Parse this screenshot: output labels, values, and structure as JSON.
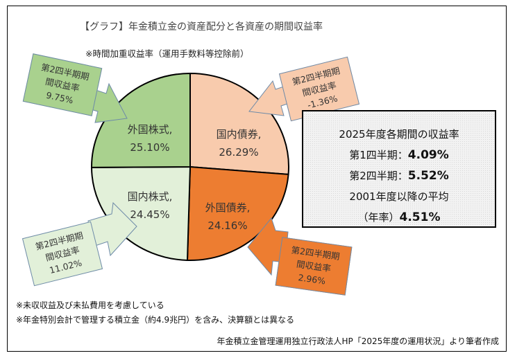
{
  "chart_data": {
    "type": "pie",
    "title": "【グラフ】年金積立金の資産配分と各資産の期間収益率",
    "subtitle": "※時間加重収益率（運用手数料等控除前）",
    "slices": [
      {
        "name": "国内債券",
        "label": "国内債券,",
        "value": 26.29,
        "value_label": "26.29%",
        "color": "#f8cbad",
        "q2_return": "-1.36%"
      },
      {
        "name": "外国債券",
        "label": "外国債券,",
        "value": 24.16,
        "value_label": "24.16%",
        "color": "#ed7d31",
        "q2_return": "2.96%"
      },
      {
        "name": "国内株式",
        "label": "国内株式,",
        "value": 24.45,
        "value_label": "24.45%",
        "color": "#e2f0d9",
        "q2_return": "11.02%"
      },
      {
        "name": "外国株式",
        "label": "外国株式,",
        "value": 25.1,
        "value_label": "25.10%",
        "color": "#a9d18e",
        "q2_return": "9.75%"
      }
    ],
    "callout_line1": "第2四半期期",
    "callout_line2": "間収益率"
  },
  "summary": {
    "heading": "2025年度各期間の収益率",
    "q1_label": "第1四半期：",
    "q1_value": "4.09%",
    "q2_label": "第2四半期：",
    "q2_value": "5.52%",
    "avg_label": "2001年度以降の平均",
    "avg_prefix": "（年率）",
    "avg_value": "4.51%"
  },
  "notes": [
    "※未収収益及び未払費用を考慮している",
    "※年金特別会計で管理する積立金（約4.9兆円）を含み、決算額とは異なる"
  ],
  "source": "年金積立金管理運用独立行政法人HP「2025年度の運用状況」より筆者作成"
}
